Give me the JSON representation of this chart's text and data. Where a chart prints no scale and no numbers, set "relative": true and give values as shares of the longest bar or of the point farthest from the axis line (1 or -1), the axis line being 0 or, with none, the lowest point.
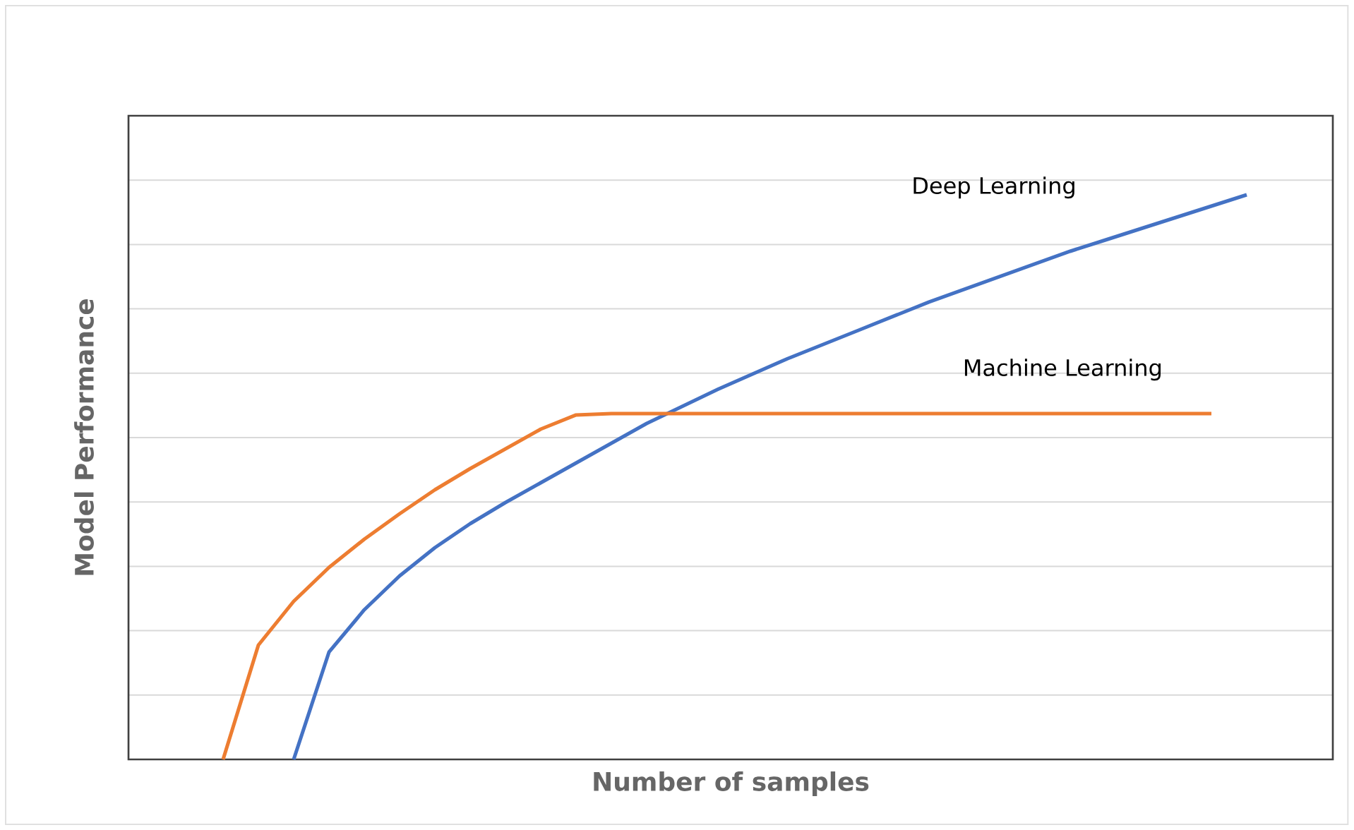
{
  "chart_data": {
    "type": "line",
    "xlabel": "Number of samples",
    "ylabel": "Model Performance",
    "relative": true,
    "grid": "y",
    "marker": "none",
    "line_style": "solid",
    "categories": [
      null,
      null,
      null,
      null,
      null,
      null,
      null,
      null,
      null,
      null,
      null,
      null,
      null,
      null,
      null,
      null,
      null,
      null,
      null,
      null,
      null,
      null,
      null,
      null,
      null,
      null,
      null,
      null,
      null,
      null
    ],
    "series": [
      {
        "name": "Deep Learning",
        "color": "#4472c4",
        "values": [
          null,
          null,
          0,
          0.19,
          0.265,
          0.325,
          0.375,
          0.4175,
          0.455,
          0.49,
          0.525,
          0.56,
          0.595,
          0.625,
          0.655,
          0.6825,
          0.71,
          0.735,
          0.76,
          0.785,
          0.81,
          0.8325,
          0.855,
          0.8775,
          0.9,
          0.92,
          0.94,
          0.96,
          0.98,
          1.0
        ]
      },
      {
        "name": "Machine Learning",
        "color": "#ed7d31",
        "values": [
          0,
          0.2025,
          0.28,
          0.34,
          0.39,
          0.435,
          0.4775,
          0.515,
          0.55,
          0.585,
          0.61,
          0.6125,
          0.6125,
          0.6125,
          0.6125,
          0.6125,
          0.6125,
          0.6125,
          0.6125,
          0.6125,
          0.6125,
          0.6125,
          0.6125,
          0.6125,
          0.6125,
          0.6125,
          0.6125,
          0.6125,
          0.6125,
          null
        ]
      }
    ]
  }
}
